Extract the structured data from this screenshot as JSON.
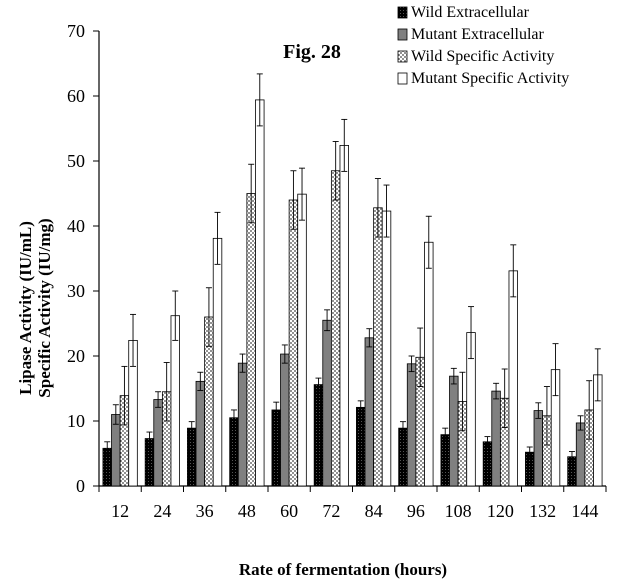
{
  "chart_data": {
    "type": "bar",
    "title": "Fig. 28",
    "xlabel": "Rate of fermentation (hours)",
    "ylabel_line1": "Lipase Activity (IU/mL)",
    "ylabel_line2": "Specific Activity (IU/mg)",
    "categories": [
      "12",
      "24",
      "36",
      "48",
      "60",
      "72",
      "84",
      "96",
      "108",
      "120",
      "132",
      "144"
    ],
    "ylim": [
      0,
      70
    ],
    "yticks": [
      0,
      10,
      20,
      30,
      40,
      50,
      60,
      70
    ],
    "grid": false,
    "legend_position": "top-right",
    "series": [
      {
        "name": "Wild Extracellular",
        "pattern": "black",
        "values": [
          5.8,
          7.3,
          8.9,
          10.5,
          11.7,
          15.6,
          12.1,
          8.9,
          7.9,
          6.8,
          5.2,
          4.5
        ],
        "errors": [
          1.0,
          1.0,
          1.0,
          1.2,
          1.2,
          1.0,
          1.0,
          1.0,
          1.0,
          0.8,
          0.8,
          0.8
        ]
      },
      {
        "name": "Mutant Extracellular",
        "pattern": "gray",
        "values": [
          11.0,
          13.3,
          16.1,
          18.9,
          20.3,
          25.5,
          22.8,
          18.8,
          16.9,
          14.6,
          11.6,
          9.7
        ],
        "errors": [
          1.5,
          1.2,
          1.4,
          1.4,
          1.4,
          1.6,
          1.4,
          1.2,
          1.2,
          1.2,
          1.2,
          1.1
        ]
      },
      {
        "name": "Wild Specific Activity",
        "pattern": "dots",
        "values": [
          13.9,
          14.5,
          26.0,
          45.0,
          44.0,
          48.5,
          42.8,
          19.8,
          13.0,
          13.5,
          10.8,
          11.7
        ],
        "errors": [
          4.5,
          4.5,
          4.5,
          4.5,
          4.5,
          4.5,
          4.5,
          4.5,
          4.5,
          4.5,
          4.5,
          4.5
        ]
      },
      {
        "name": "Mutant Specific Activity",
        "pattern": "white",
        "values": [
          22.4,
          26.2,
          38.1,
          59.4,
          44.9,
          52.4,
          42.3,
          37.5,
          23.6,
          33.1,
          17.9,
          17.1
        ],
        "errors": [
          4.0,
          3.8,
          4.0,
          4.0,
          4.0,
          4.0,
          4.0,
          4.0,
          4.0,
          4.0,
          4.0,
          4.0
        ]
      }
    ]
  }
}
